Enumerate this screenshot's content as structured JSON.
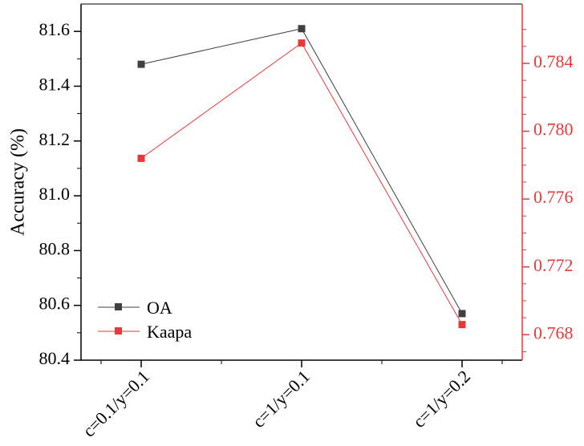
{
  "chart_data": {
    "type": "line",
    "categories": [
      "c=0.1/y=0.1",
      "c=1/y=0.1",
      "c=1/y=0.2"
    ],
    "ylabel": "Accuracy (%)",
    "ylim": [
      80.4,
      81.7
    ],
    "yticks": [
      "80.4",
      "80.6",
      "80.8",
      "81.0",
      "81.2",
      "81.4",
      "81.6"
    ],
    "y2lim": [
      0.7665,
      0.7875
    ],
    "y2ticks": [
      "0.768",
      "0.772",
      "0.776",
      "0.780",
      "0.784"
    ],
    "legend_position": "bottom-left",
    "series": [
      {
        "name": "OA",
        "axis": "left",
        "color": "#404040",
        "values": [
          81.48,
          81.61,
          80.57
        ]
      },
      {
        "name": "Kaapa",
        "axis": "right",
        "color": "#e8393a",
        "values": [
          0.7784,
          0.7852,
          0.7686
        ]
      }
    ],
    "right_axis_color": "#e8393a"
  }
}
